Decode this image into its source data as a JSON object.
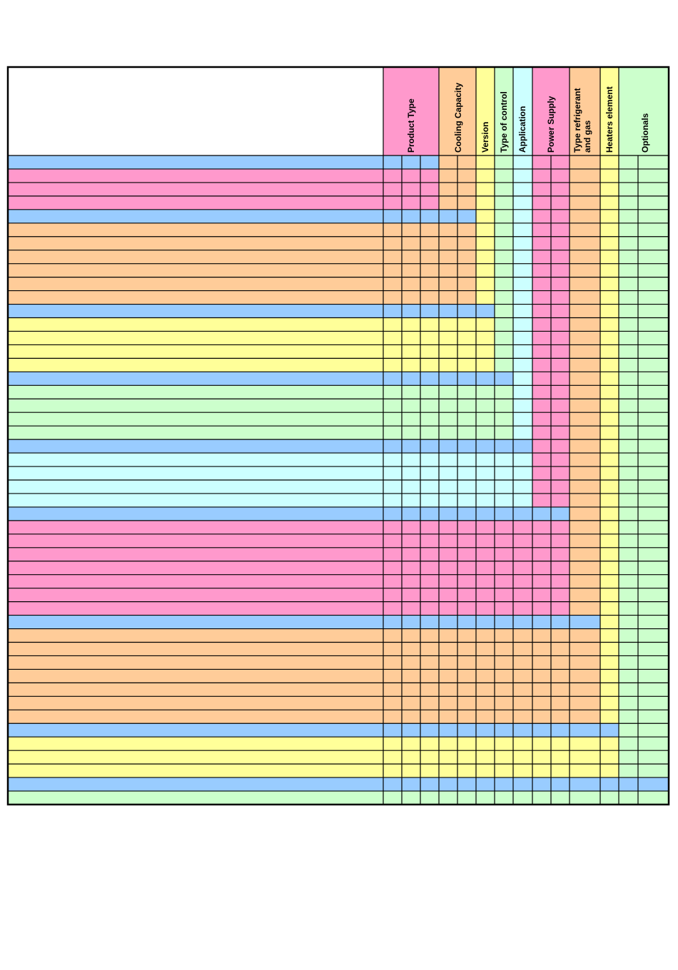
{
  "colors": {
    "blue": "#99ccff",
    "pink": "#ff99cc",
    "orange": "#ffcc99",
    "yellow": "#ffff99",
    "green": "#ccffcc",
    "cyan": "#ccffff",
    "white": "#ffffff",
    "border": "#000000"
  },
  "headers": {
    "product_type": "Product Type",
    "cooling_capacity": "Cooling Capacity",
    "version": "Version",
    "type_of_control": "Type of control",
    "application": "Application",
    "power_supply": "Power Supply",
    "type_refrigerant_line1": "Type refrigerant",
    "type_refrigerant_line2": "and gas",
    "heaters_element": "Heaters element",
    "optionals": "Optionals"
  },
  "groups": [
    {
      "key": "product_type",
      "color": "pink",
      "rows": 3,
      "col_start": 0,
      "col_end": 2
    },
    {
      "key": "cooling_capacity",
      "color": "orange",
      "rows": 6,
      "col_start": 3,
      "col_end": 4
    },
    {
      "key": "version",
      "color": "yellow",
      "rows": 4,
      "col_start": 5,
      "col_end": 5
    },
    {
      "key": "type_of_control",
      "color": "green",
      "rows": 4,
      "col_start": 6,
      "col_end": 6
    },
    {
      "key": "application",
      "color": "cyan",
      "rows": 4,
      "col_start": 7,
      "col_end": 7
    },
    {
      "key": "power_supply",
      "color": "pink",
      "rows": 7,
      "col_start": 8,
      "col_end": 9
    },
    {
      "key": "type_refrigerant",
      "color": "orange",
      "rows": 7,
      "col_start": 10,
      "col_end": 10
    },
    {
      "key": "heaters_element",
      "color": "yellow",
      "rows": 3,
      "col_start": 11,
      "col_end": 11
    },
    {
      "key": "optionals",
      "color": "green",
      "rows": 1,
      "col_start": 12,
      "col_end": 13
    }
  ]
}
